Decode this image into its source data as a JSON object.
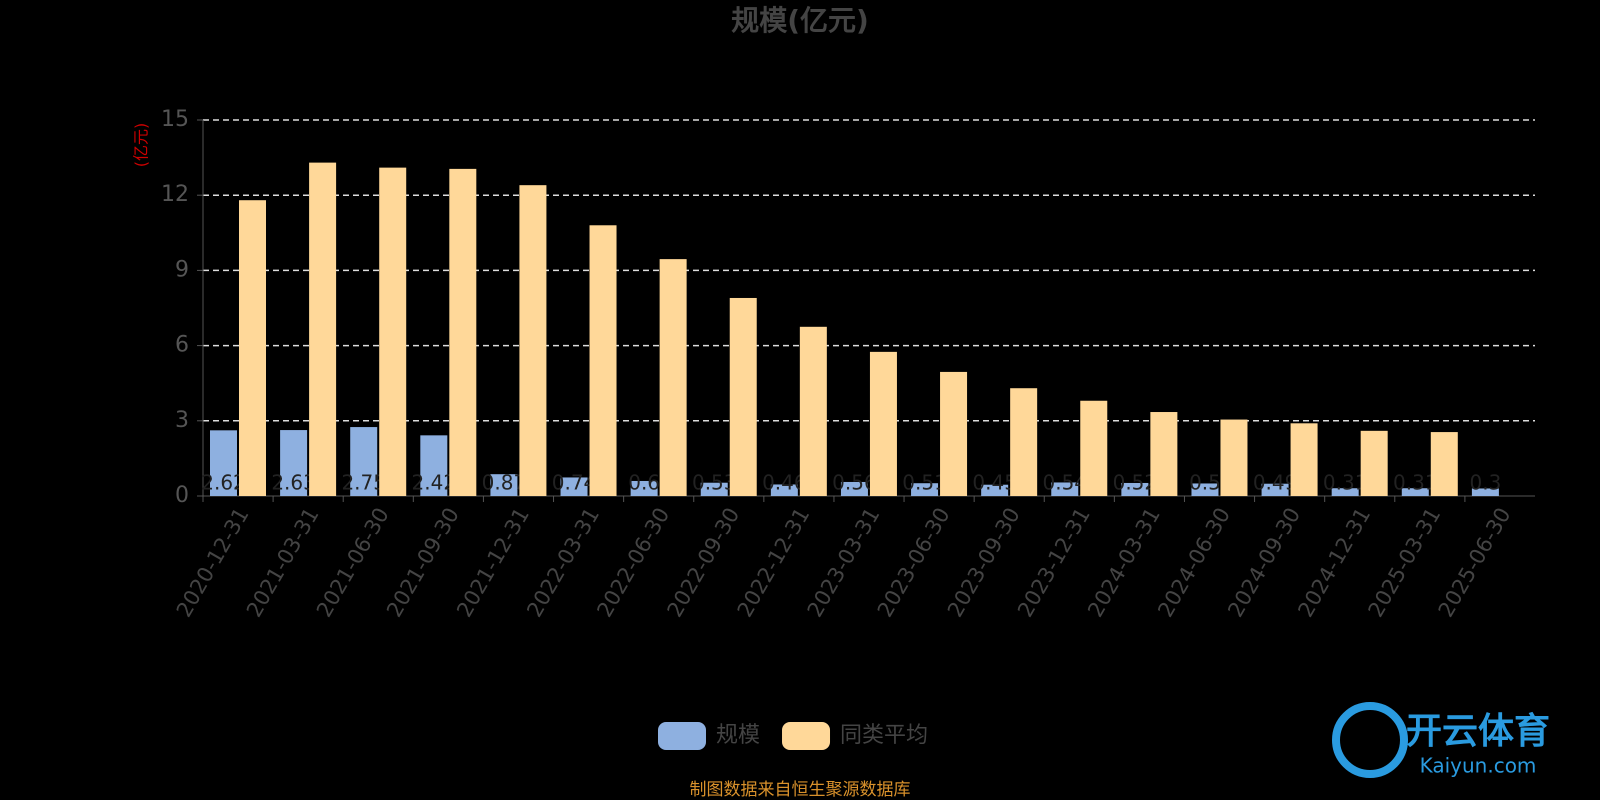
{
  "chart_data": {
    "type": "bar",
    "title": "规模(亿元)",
    "y_label": "(亿元)",
    "categories": [
      "2020-12-31",
      "2021-03-31",
      "2021-06-30",
      "2021-09-30",
      "2021-12-31",
      "2022-03-31",
      "2022-06-30",
      "2022-09-30",
      "2022-12-31",
      "2023-03-31",
      "2023-06-30",
      "2023-09-30",
      "2023-12-31",
      "2024-03-31",
      "2024-06-30",
      "2024-09-30",
      "2024-12-31",
      "2025-03-31",
      "2025-06-30"
    ],
    "series": [
      {
        "name": "规模",
        "color": "#8eb0e0",
        "values": [
          2.62,
          2.63,
          2.75,
          2.42,
          0.87,
          0.74,
          0.6,
          0.53,
          0.46,
          0.56,
          0.51,
          0.45,
          0.54,
          0.52,
          0.5,
          0.49,
          0.31,
          0.31,
          0.3
        ]
      },
      {
        "name": "同类平均",
        "color": "#ffd899",
        "values": [
          11.8,
          13.3,
          13.1,
          13.05,
          12.4,
          10.8,
          9.45,
          7.9,
          6.75,
          5.75,
          4.95,
          4.3,
          3.8,
          3.35,
          3.05,
          2.9,
          2.6,
          2.55,
          null
        ]
      }
    ],
    "ylim": [
      0,
      15
    ],
    "yticks": [
      0,
      3,
      6,
      9,
      12,
      15
    ],
    "grid": true,
    "source": "制图数据来自恒生聚源数据库",
    "watermark": [
      "开云体育",
      "Kaiyun.com"
    ]
  }
}
